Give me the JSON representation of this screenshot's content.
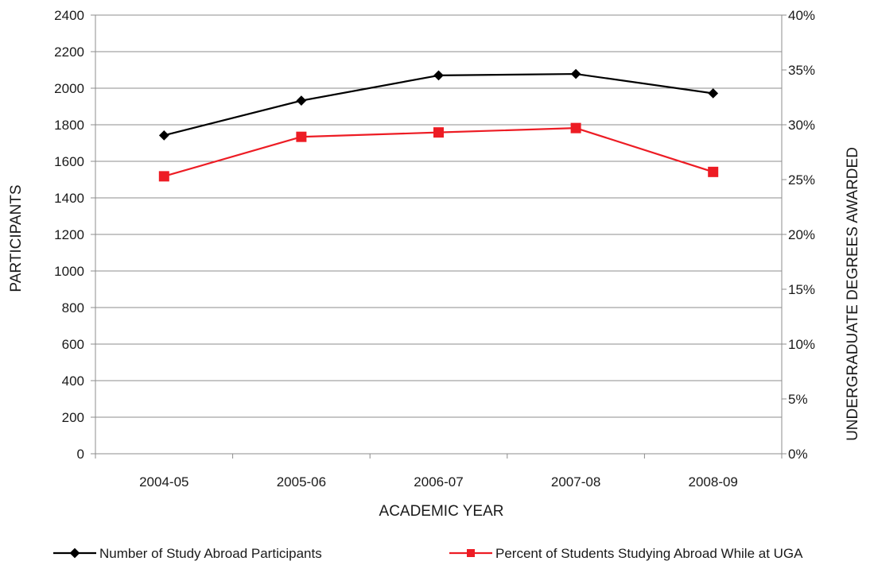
{
  "chart_data": {
    "type": "line",
    "categories": [
      "2004-05",
      "2005-06",
      "2006-07",
      "2007-08",
      "2008-09"
    ],
    "xlabel": "ACADEMIC YEAR",
    "ylabel": "PARTICIPANTS",
    "y2label": "UNDERGRADUATE DEGREES AWARDED",
    "ylim": [
      0,
      2400
    ],
    "yticks": [
      0,
      200,
      400,
      600,
      800,
      1000,
      1200,
      1400,
      1600,
      1800,
      2000,
      2200,
      2400
    ],
    "y2lim": [
      0,
      40
    ],
    "y2ticks": [
      "0%",
      "5%",
      "10%",
      "15%",
      "20%",
      "25%",
      "30%",
      "35%",
      "40%"
    ],
    "grid": true,
    "legend_position": "bottom",
    "series": [
      {
        "name": "Number of Study Abroad Participants",
        "axis": "left",
        "values": [
          1742,
          1932,
          2070,
          2078,
          1972
        ],
        "color": "#000000",
        "marker": "diamond"
      },
      {
        "name": "Percent of Students Studying Abroad While at UGA",
        "axis": "right",
        "values": [
          25.3,
          28.9,
          29.3,
          29.7,
          25.7
        ],
        "color": "#ed1c24",
        "marker": "square"
      }
    ]
  }
}
